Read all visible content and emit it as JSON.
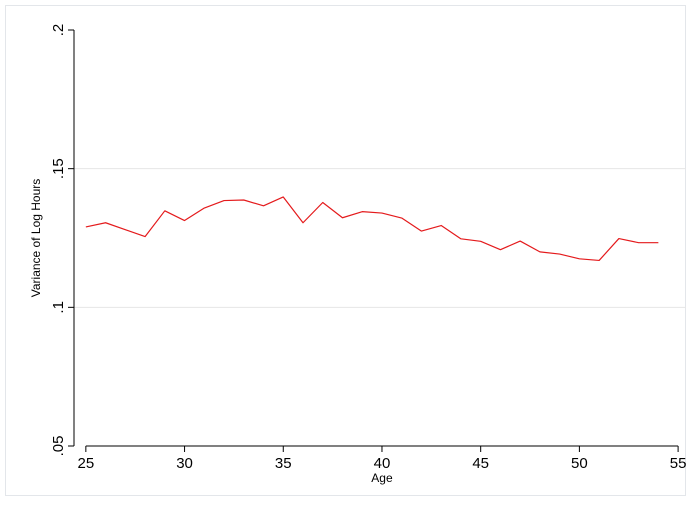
{
  "chart_data": {
    "type": "line",
    "xlabel": "Age",
    "ylabel": "Variance of Log Hours",
    "xlim": [
      24.4,
      55.4
    ],
    "ylim": [
      0.05,
      0.2
    ],
    "xticks": [
      25,
      30,
      35,
      40,
      45,
      50,
      55
    ],
    "yticks": [
      0.05,
      0.1,
      0.15,
      0.2
    ],
    "ytick_labels": [
      ".05",
      ".1",
      ".15",
      ".2"
    ],
    "grid": "horizontal",
    "series": [
      {
        "color": "#e41a1c",
        "x": [
          25,
          26,
          27,
          28,
          29,
          30,
          31,
          32,
          33,
          34,
          35,
          36,
          37,
          38,
          39,
          40,
          41,
          42,
          43,
          44,
          45,
          46,
          47,
          48,
          49,
          50,
          51,
          52,
          53,
          54
        ],
        "y": [
          0.129,
          0.1305,
          0.128,
          0.1255,
          0.1348,
          0.1313,
          0.1358,
          0.1385,
          0.1387,
          0.1366,
          0.1398,
          0.1305,
          0.1378,
          0.1323,
          0.1345,
          0.134,
          0.1322,
          0.1275,
          0.1295,
          0.1247,
          0.1238,
          0.1208,
          0.1239,
          0.12,
          0.1192,
          0.1175,
          0.1169,
          0.1248,
          0.1233,
          0.1233
        ]
      }
    ]
  }
}
